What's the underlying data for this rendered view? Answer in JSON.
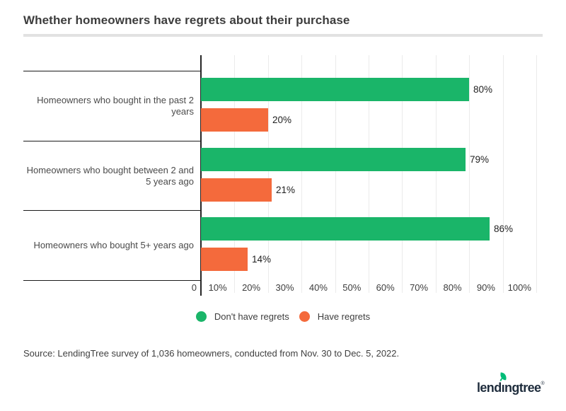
{
  "page": {
    "title": "Whether homeowners have regrets about their purchase",
    "source": "Source: LendingTree survey of 1,036 homeowners, conducted from Nov. 30 to Dec. 5, 2022.",
    "logo": {
      "part1": "lend",
      "dotless_i": "ı",
      "part2": "ngtree",
      "registered": "®"
    }
  },
  "chart_data": {
    "type": "bar",
    "orientation": "horizontal",
    "title": "Whether homeowners have regrets about their purchase",
    "categories": [
      "Homeowners who bought in the past 2 years",
      "Homeowners who bought between 2 and 5 years ago",
      "Homeowners who bought 5+ years ago"
    ],
    "series": [
      {
        "name": "Don't have regrets",
        "color": "#1AB569",
        "values": [
          80,
          79,
          86
        ]
      },
      {
        "name": "Have regrets",
        "color": "#F46A3C",
        "values": [
          20,
          21,
          14
        ]
      }
    ],
    "value_suffix": "%",
    "x_axis": {
      "min": 0,
      "max": 100,
      "tick_labels": [
        "0",
        "10%",
        "20%",
        "30%",
        "40%",
        "50%",
        "60%",
        "70%",
        "80%",
        "90%",
        "100%"
      ]
    },
    "grid": "vertical",
    "legend_position": "bottom-center"
  },
  "colors": {
    "green": "#1AB569",
    "orange": "#F46A3C",
    "axis": "#262626",
    "gridline": "#EBEBEB",
    "row_divider": "#1B1B1B",
    "title_rule": "#E2E2E2",
    "text": "#3D3D3D",
    "value_text": "#1F1F1F",
    "logo_navy": "#1E2C3C",
    "leaf_green": "#00BC77"
  }
}
